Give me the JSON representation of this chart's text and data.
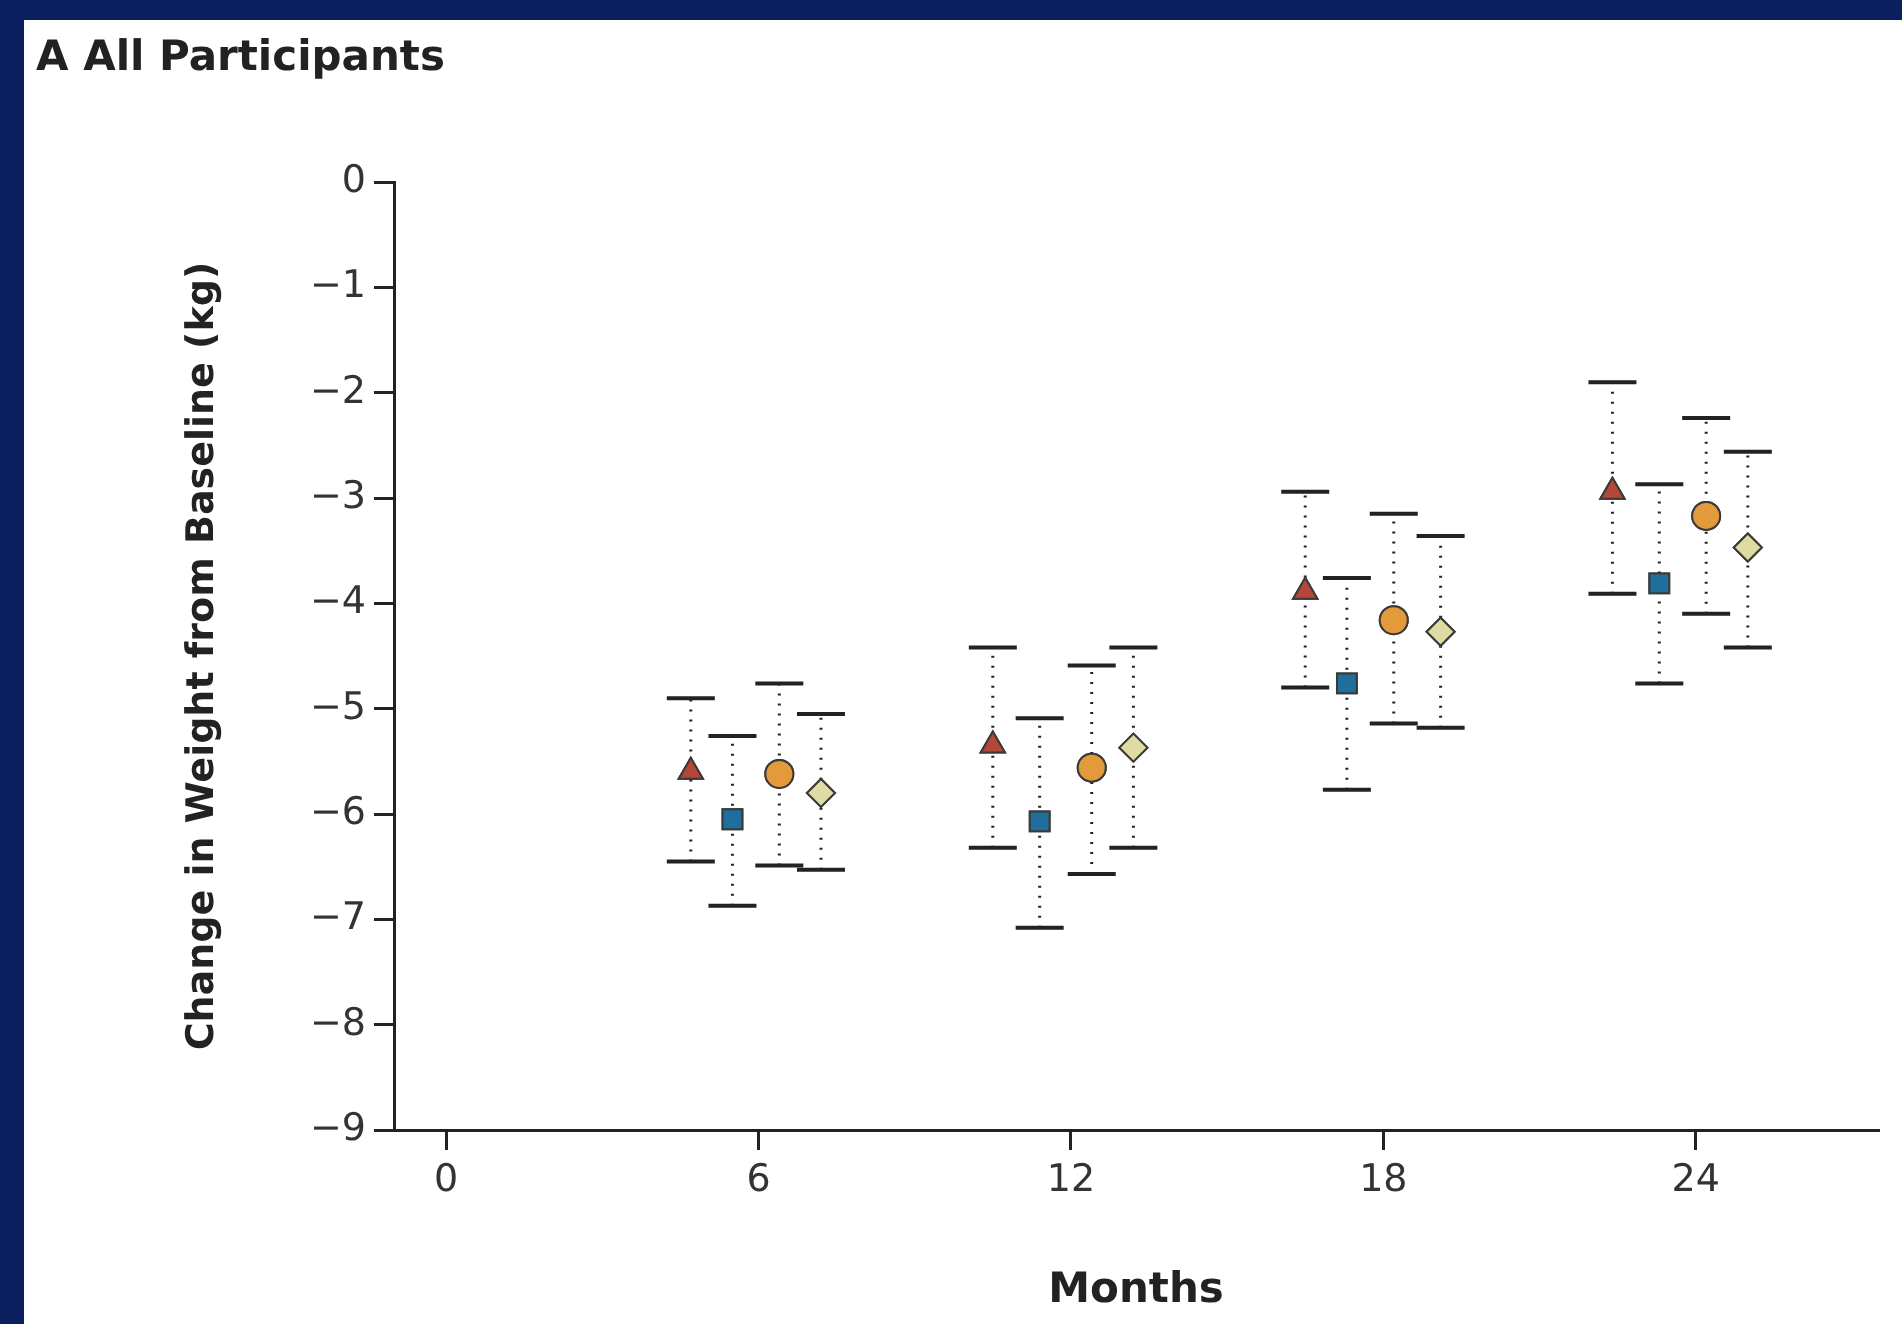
{
  "chart_data": {
    "type": "scatter",
    "title": "A All Participants",
    "xlabel": "Months",
    "ylabel": "Change in Weight from Baseline (kg)",
    "xlim": [
      -1,
      27.5
    ],
    "xticks": [
      0,
      6,
      12,
      18,
      24
    ],
    "ylim": [
      -9,
      0
    ],
    "yticks": [
      {
        "value": 0,
        "label": "0"
      },
      {
        "value": -1,
        "label": "−1"
      },
      {
        "value": -2,
        "label": "−2"
      },
      {
        "value": -3,
        "label": "−3"
      },
      {
        "value": -4,
        "label": "−4"
      },
      {
        "value": -5,
        "label": "−5"
      },
      {
        "value": -6,
        "label": "−6"
      },
      {
        "value": -7,
        "label": "−7"
      },
      {
        "value": -8,
        "label": "−8"
      },
      {
        "value": -9,
        "label": "−9"
      }
    ],
    "grid": false,
    "legend": false,
    "line_style": "dotted",
    "series": [
      {
        "color": "#b5473a",
        "marker": "triangle",
        "x": [
          4.7,
          10.5,
          16.5,
          22.4
        ],
        "values": [
          -5.6,
          -5.35,
          -3.89,
          -2.94
        ],
        "errors": [
          [
            -6.45,
            -4.9
          ],
          [
            -6.32,
            -4.42
          ],
          [
            -4.8,
            -2.94
          ],
          [
            -3.91,
            -1.9
          ]
        ]
      },
      {
        "color": "#1f6e9c",
        "marker": "square",
        "x": [
          5.5,
          11.4,
          17.3,
          23.3
        ],
        "values": [
          -6.05,
          -6.07,
          -4.76,
          -3.81
        ],
        "errors": [
          [
            -6.87,
            -5.26
          ],
          [
            -7.08,
            -5.09
          ],
          [
            -5.77,
            -3.76
          ],
          [
            -4.76,
            -2.87
          ]
        ]
      },
      {
        "color": "#e29a3b",
        "marker": "circle",
        "x": [
          6.4,
          12.4,
          18.2,
          24.2
        ],
        "values": [
          -5.62,
          -5.56,
          -4.16,
          -3.17
        ],
        "errors": [
          [
            -6.49,
            -4.76
          ],
          [
            -6.57,
            -4.59
          ],
          [
            -5.14,
            -3.15
          ],
          [
            -4.1,
            -2.24
          ]
        ]
      },
      {
        "color": "#dedca2",
        "marker": "diamond",
        "x": [
          7.2,
          13.2,
          19.1,
          25.0
        ],
        "values": [
          -5.8,
          -5.37,
          -4.27,
          -3.47
        ],
        "errors": [
          [
            -6.53,
            -5.05
          ],
          [
            -6.32,
            -4.42
          ],
          [
            -5.18,
            -3.36
          ],
          [
            -4.42,
            -2.56
          ]
        ]
      }
    ]
  }
}
